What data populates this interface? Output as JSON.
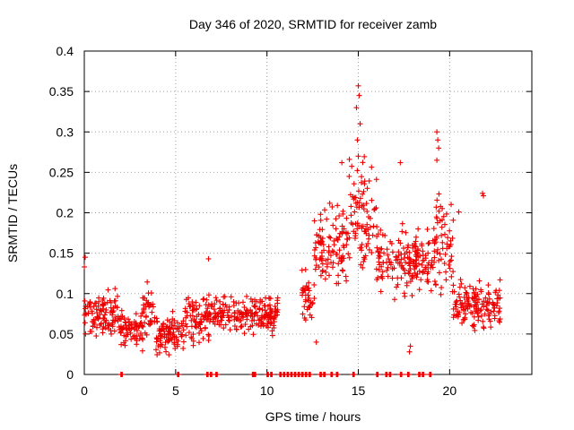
{
  "chart_data": {
    "type": "scatter",
    "title": "Day 346 of 2020, SRMTID for receiver zamb",
    "xlabel": "GPS time / hours",
    "ylabel": "SRMTID / TECUs",
    "xlim": [
      0,
      24.5
    ],
    "ylim": [
      0,
      0.4
    ],
    "x_ticks": [
      0,
      5,
      10,
      15,
      20
    ],
    "x_tick_labels": [
      "0",
      "5",
      "10",
      "15",
      "20"
    ],
    "y_ticks": [
      0,
      0.05,
      0.1,
      0.15,
      0.2,
      0.25,
      0.3,
      0.35,
      0.4
    ],
    "y_tick_labels": [
      "0",
      "0.05",
      "0.1",
      "0.15",
      "0.2",
      "0.25",
      "0.3",
      "0.35",
      "0.4"
    ],
    "grid": true,
    "marker": "plus",
    "series": [
      {
        "name": "SRMTID",
        "color": "#ee0000",
        "segments": [
          {
            "x_start": 0.0,
            "x_end": 1.9,
            "level": 0.075,
            "spread": 0.025
          },
          {
            "x_start": 1.9,
            "x_end": 3.2,
            "level": 0.055,
            "spread": 0.02
          },
          {
            "x_start": 3.2,
            "x_end": 3.8,
            "level": 0.08,
            "spread": 0.025
          },
          {
            "x_start": 3.8,
            "x_end": 5.5,
            "level": 0.05,
            "spread": 0.02
          },
          {
            "x_start": 5.5,
            "x_end": 7.0,
            "level": 0.07,
            "spread": 0.025
          },
          {
            "x_start": 7.0,
            "x_end": 10.6,
            "level": 0.075,
            "spread": 0.02
          },
          {
            "x_start": 11.9,
            "x_end": 12.6,
            "level": 0.09,
            "spread": 0.03
          },
          {
            "x_start": 12.6,
            "x_end": 14.5,
            "level": 0.16,
            "spread": 0.04
          },
          {
            "x_start": 14.5,
            "x_end": 16.0,
            "level": 0.2,
            "spread": 0.06
          },
          {
            "x_start": 16.0,
            "x_end": 19.0,
            "level": 0.14,
            "spread": 0.035
          },
          {
            "x_start": 19.0,
            "x_end": 20.2,
            "level": 0.16,
            "spread": 0.05
          },
          {
            "x_start": 20.2,
            "x_end": 22.8,
            "level": 0.085,
            "spread": 0.025
          }
        ],
        "outliers": [
          {
            "x": 0.0,
            "y": 0.133
          },
          {
            "x": 0.05,
            "y": 0.145
          },
          {
            "x": 6.8,
            "y": 0.143
          },
          {
            "x": 12.6,
            "y": 0.19
          },
          {
            "x": 14.1,
            "y": 0.262
          },
          {
            "x": 14.5,
            "y": 0.245
          },
          {
            "x": 15.0,
            "y": 0.357
          },
          {
            "x": 15.05,
            "y": 0.345
          },
          {
            "x": 14.9,
            "y": 0.33
          },
          {
            "x": 15.1,
            "y": 0.31
          },
          {
            "x": 14.95,
            "y": 0.29
          },
          {
            "x": 15.0,
            "y": 0.27
          },
          {
            "x": 17.3,
            "y": 0.262
          },
          {
            "x": 19.3,
            "y": 0.3
          },
          {
            "x": 19.35,
            "y": 0.29
          },
          {
            "x": 19.4,
            "y": 0.28
          },
          {
            "x": 19.3,
            "y": 0.265
          },
          {
            "x": 21.8,
            "y": 0.224
          },
          {
            "x": 21.85,
            "y": 0.221
          },
          {
            "x": 20.5,
            "y": 0.201
          },
          {
            "x": 12.7,
            "y": 0.04
          },
          {
            "x": 17.8,
            "y": 0.028
          },
          {
            "x": 17.85,
            "y": 0.035
          }
        ],
        "zero_x": [
          2.0,
          5.1,
          6.7,
          6.9,
          7.2,
          9.2,
          9.3,
          10.0,
          10.2,
          10.7,
          10.9,
          11.1,
          11.3,
          11.5,
          11.7,
          11.9,
          12.1,
          12.3,
          12.9,
          13.1,
          13.5,
          13.8,
          14.7,
          16.0,
          16.5,
          16.7,
          17.3,
          17.7,
          18.3,
          18.5,
          18.9
        ]
      }
    ]
  }
}
